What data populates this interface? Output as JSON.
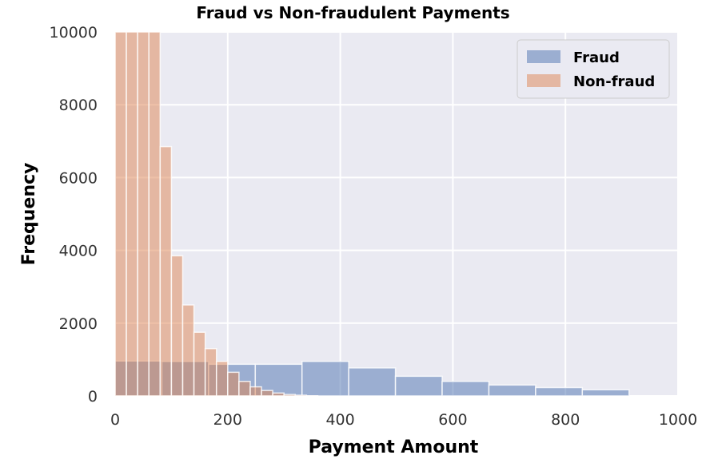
{
  "chart_data": {
    "type": "bar",
    "title": "Fraud vs Non-fraudulent Payments",
    "xlabel": "Payment Amount",
    "ylabel": "Frequency",
    "xlim": [
      0,
      1000
    ],
    "ylim": [
      0,
      10000
    ],
    "xticks": [
      "0",
      "200",
      "400",
      "600",
      "800",
      "1000"
    ],
    "yticks": [
      "0",
      "2000",
      "4000",
      "6000",
      "8000",
      "10000"
    ],
    "grid": true,
    "legend_position": "top-right",
    "background_color": "#eaeaf2",
    "series": [
      {
        "name": "Fraud",
        "color": "#4c72b0",
        "bin_edges": [
          0,
          83,
          166,
          249,
          332,
          415,
          498,
          581,
          664,
          747,
          830,
          913
        ],
        "values": [
          960,
          950,
          870,
          870,
          950,
          770,
          540,
          400,
          300,
          230,
          170,
          130
        ]
      },
      {
        "name": "Non-fraud",
        "color": "#dd8452",
        "bin_edges": [
          0,
          20,
          40,
          60,
          80,
          100,
          120,
          140,
          160,
          180,
          200,
          220,
          240,
          260,
          280,
          300,
          320,
          340,
          360
        ],
        "values": [
          10000,
          10000,
          10000,
          10000,
          6850,
          3850,
          2500,
          1750,
          1300,
          950,
          650,
          400,
          250,
          150,
          80,
          40,
          20,
          5
        ]
      }
    ]
  }
}
